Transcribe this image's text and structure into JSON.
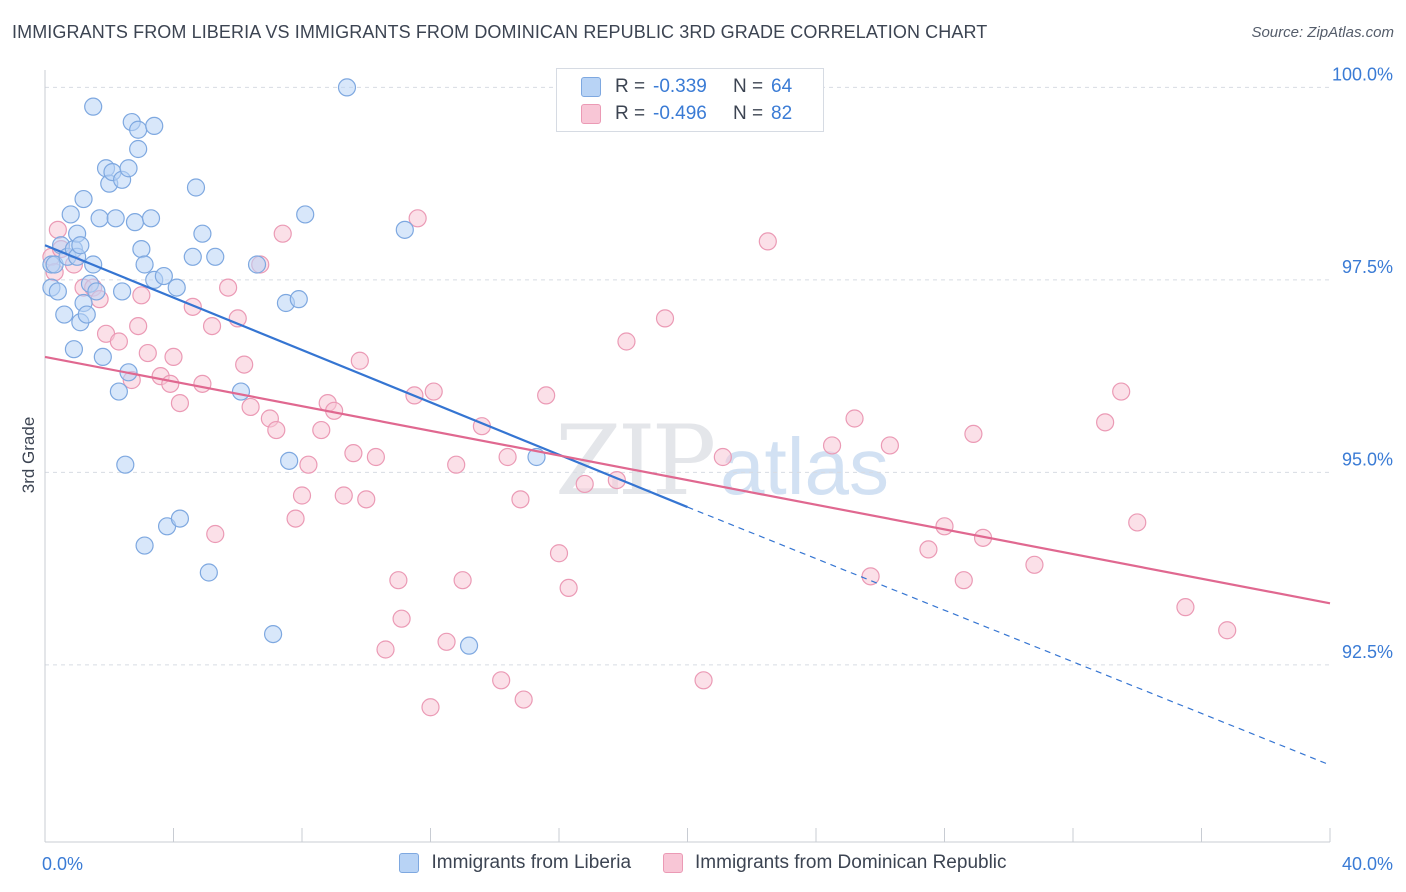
{
  "title": "IMMIGRANTS FROM LIBERIA VS IMMIGRANTS FROM DOMINICAN REPUBLIC 3RD GRADE CORRELATION CHART",
  "source": "Source: ZipAtlas.com",
  "watermark": {
    "zip": "ZIP",
    "atlas": "atlas"
  },
  "colors": {
    "liberia_fill": "#b8d3f5",
    "liberia_stroke": "#7ea8e0",
    "liberia_line": "#3575d2",
    "dr_fill": "#f8c6d6",
    "dr_stroke": "#eb9ab5",
    "dr_line": "#e06890",
    "axis_label": "#3a7bd5",
    "grid": "#d8dce3"
  },
  "legend": {
    "rows": [
      {
        "r_label": "R =",
        "r_value": "-0.339",
        "n_label": "N =",
        "n_value": "64"
      },
      {
        "r_label": "R =",
        "r_value": "-0.496",
        "n_label": "N =",
        "n_value": "82"
      }
    ]
  },
  "chart_data": {
    "type": "scatter",
    "title": "IMMIGRANTS FROM LIBERIA VS IMMIGRANTS FROM DOMINICAN REPUBLIC 3RD GRADE CORRELATION CHART",
    "xlabel": "",
    "ylabel": "3rd Grade",
    "xlim": [
      0,
      40
    ],
    "ylim": [
      90.2,
      100.2
    ],
    "x_tick_labels": [
      {
        "value": 0,
        "label": "0.0%"
      },
      {
        "value": 40,
        "label": "40.0%"
      }
    ],
    "y_tick_labels": [
      {
        "value": 100,
        "label": "100.0%"
      },
      {
        "value": 97.5,
        "label": "97.5%"
      },
      {
        "value": 95,
        "label": "95.0%"
      },
      {
        "value": 92.5,
        "label": "92.5%"
      }
    ],
    "grid": "horizontal dashed",
    "legend_position": "top-center",
    "series": [
      {
        "name": "Immigrants from Liberia",
        "trend": {
          "x": [
            0,
            20
          ],
          "y": [
            97.95,
            94.55
          ],
          "dashed_extension_to": [
            40,
            91.2
          ]
        },
        "points": [
          [
            0.2,
            97.4
          ],
          [
            0.2,
            97.7
          ],
          [
            0.3,
            97.7
          ],
          [
            0.4,
            97.35
          ],
          [
            0.5,
            97.95
          ],
          [
            0.6,
            97.05
          ],
          [
            0.7,
            97.8
          ],
          [
            0.8,
            98.35
          ],
          [
            0.9,
            97.9
          ],
          [
            0.9,
            96.6
          ],
          [
            1.0,
            97.8
          ],
          [
            1.0,
            98.1
          ],
          [
            1.1,
            97.95
          ],
          [
            1.1,
            96.95
          ],
          [
            1.2,
            98.55
          ],
          [
            1.2,
            97.2
          ],
          [
            1.3,
            97.05
          ],
          [
            1.4,
            97.45
          ],
          [
            1.5,
            99.75
          ],
          [
            1.5,
            97.7
          ],
          [
            1.6,
            97.35
          ],
          [
            1.7,
            98.3
          ],
          [
            1.8,
            96.5
          ],
          [
            1.9,
            98.95
          ],
          [
            2.0,
            98.75
          ],
          [
            2.1,
            98.9
          ],
          [
            2.2,
            98.3
          ],
          [
            2.3,
            96.05
          ],
          [
            2.4,
            98.8
          ],
          [
            2.4,
            97.35
          ],
          [
            2.5,
            95.1
          ],
          [
            2.6,
            98.95
          ],
          [
            2.6,
            96.3
          ],
          [
            2.7,
            99.55
          ],
          [
            2.8,
            98.25
          ],
          [
            2.9,
            99.45
          ],
          [
            2.9,
            99.2
          ],
          [
            3.0,
            97.9
          ],
          [
            3.1,
            97.7
          ],
          [
            3.1,
            94.05
          ],
          [
            3.3,
            98.3
          ],
          [
            3.4,
            99.5
          ],
          [
            3.4,
            97.5
          ],
          [
            3.7,
            97.55
          ],
          [
            3.8,
            94.3
          ],
          [
            4.1,
            97.4
          ],
          [
            4.2,
            94.4
          ],
          [
            4.6,
            97.8
          ],
          [
            4.7,
            98.7
          ],
          [
            4.9,
            98.1
          ],
          [
            5.1,
            93.7
          ],
          [
            5.3,
            97.8
          ],
          [
            6.1,
            96.05
          ],
          [
            6.6,
            97.7
          ],
          [
            7.1,
            92.9
          ],
          [
            7.5,
            97.2
          ],
          [
            7.6,
            95.15
          ],
          [
            7.9,
            97.25
          ],
          [
            8.1,
            98.35
          ],
          [
            9.4,
            100.0
          ],
          [
            11.2,
            98.15
          ],
          [
            13.2,
            92.75
          ],
          [
            15.3,
            95.2
          ]
        ]
      },
      {
        "name": "Immigrants from Dominican Republic",
        "trend": {
          "x": [
            0,
            40
          ],
          "y": [
            96.5,
            93.3
          ]
        },
        "points": [
          [
            0.2,
            97.8
          ],
          [
            0.3,
            97.6
          ],
          [
            0.4,
            98.15
          ],
          [
            0.5,
            97.9
          ],
          [
            0.9,
            97.7
          ],
          [
            1.2,
            97.4
          ],
          [
            1.5,
            97.4
          ],
          [
            1.7,
            97.25
          ],
          [
            1.9,
            96.8
          ],
          [
            2.3,
            96.7
          ],
          [
            2.7,
            96.2
          ],
          [
            2.9,
            96.9
          ],
          [
            3.0,
            97.3
          ],
          [
            3.2,
            96.55
          ],
          [
            3.6,
            96.25
          ],
          [
            3.9,
            96.15
          ],
          [
            4.0,
            96.5
          ],
          [
            4.2,
            95.9
          ],
          [
            4.6,
            97.15
          ],
          [
            4.9,
            96.15
          ],
          [
            5.2,
            96.9
          ],
          [
            5.3,
            94.2
          ],
          [
            5.7,
            97.4
          ],
          [
            6.0,
            97.0
          ],
          [
            6.2,
            96.4
          ],
          [
            6.4,
            95.85
          ],
          [
            6.7,
            97.7
          ],
          [
            7.0,
            95.7
          ],
          [
            7.2,
            95.55
          ],
          [
            7.4,
            98.1
          ],
          [
            7.8,
            94.4
          ],
          [
            8.0,
            94.7
          ],
          [
            8.2,
            95.1
          ],
          [
            8.6,
            95.55
          ],
          [
            8.8,
            95.9
          ],
          [
            9.0,
            95.8
          ],
          [
            9.3,
            94.7
          ],
          [
            9.6,
            95.25
          ],
          [
            9.8,
            96.45
          ],
          [
            10.0,
            94.65
          ],
          [
            10.3,
            95.2
          ],
          [
            10.6,
            92.7
          ],
          [
            11.0,
            93.6
          ],
          [
            11.1,
            93.1
          ],
          [
            11.5,
            96.0
          ],
          [
            11.6,
            98.3
          ],
          [
            12.0,
            91.95
          ],
          [
            12.1,
            96.05
          ],
          [
            12.5,
            92.8
          ],
          [
            12.8,
            95.1
          ],
          [
            13.0,
            93.6
          ],
          [
            13.6,
            95.6
          ],
          [
            14.2,
            92.3
          ],
          [
            14.4,
            95.2
          ],
          [
            14.8,
            94.65
          ],
          [
            14.9,
            92.05
          ],
          [
            15.6,
            96.0
          ],
          [
            16.0,
            93.95
          ],
          [
            16.3,
            93.5
          ],
          [
            16.8,
            94.85
          ],
          [
            17.8,
            94.9
          ],
          [
            18.1,
            96.7
          ],
          [
            19.3,
            97.0
          ],
          [
            20.5,
            92.3
          ],
          [
            21.1,
            95.2
          ],
          [
            22.5,
            98.0
          ],
          [
            24.5,
            95.35
          ],
          [
            25.2,
            95.7
          ],
          [
            25.7,
            93.65
          ],
          [
            26.3,
            95.35
          ],
          [
            27.5,
            94.0
          ],
          [
            28.0,
            94.3
          ],
          [
            28.6,
            93.6
          ],
          [
            28.9,
            95.5
          ],
          [
            29.2,
            94.15
          ],
          [
            30.8,
            93.8
          ],
          [
            33.0,
            95.65
          ],
          [
            33.5,
            96.05
          ],
          [
            34.0,
            94.35
          ],
          [
            35.5,
            93.25
          ],
          [
            36.8,
            92.95
          ]
        ]
      }
    ]
  },
  "bottom_legend": [
    {
      "label": "Immigrants from Liberia"
    },
    {
      "label": "Immigrants from Dominican Republic"
    }
  ]
}
